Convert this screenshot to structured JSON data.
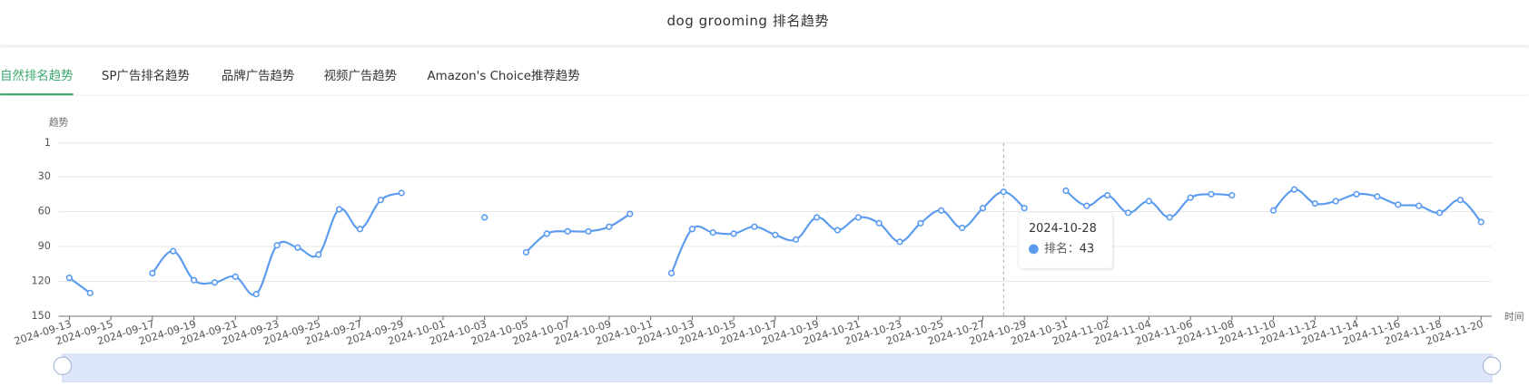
{
  "header": {
    "title": "dog grooming 排名趋势"
  },
  "tabs": {
    "items": [
      "自然排名趋势",
      "SP广告排名趋势",
      "品牌广告趋势",
      "视频广告趋势",
      "Amazon's Choice推荐趋势"
    ],
    "active": 0
  },
  "chart_data": {
    "type": "line",
    "ylabel": "趋势",
    "xlabel": "时间",
    "categories": [
      "2024-09-13",
      null,
      "2024-09-15",
      null,
      "2024-09-17",
      null,
      "2024-09-19",
      null,
      "2024-09-21",
      null,
      "2024-09-23",
      null,
      "2024-09-25",
      null,
      "2024-09-27",
      null,
      "2024-09-29",
      null,
      "2024-10-01",
      null,
      "2024-10-03",
      null,
      "2024-10-05",
      null,
      "2024-10-07",
      null,
      "2024-10-09",
      null,
      "2024-10-11",
      null,
      "2024-10-13",
      null,
      "2024-10-15",
      null,
      "2024-10-17",
      null,
      "2024-10-19",
      null,
      "2024-10-21",
      null,
      "2024-10-23",
      null,
      "2024-10-25",
      null,
      "2024-10-27",
      null,
      "2024-10-29",
      null,
      "2024-10-31",
      null,
      "2024-11-02",
      null,
      "2024-11-04",
      null,
      "2024-11-06",
      null,
      "2024-11-08",
      null,
      "2024-11-10",
      null,
      "2024-11-12",
      null,
      "2024-11-14",
      null,
      "2024-11-16",
      null,
      "2024-11-18",
      null,
      "2024-11-20"
    ],
    "series": [
      {
        "name": "排名",
        "color": "#5b9bef",
        "values": [
          117,
          130,
          null,
          null,
          113,
          94,
          119,
          121,
          116,
          131,
          89,
          91,
          97,
          58,
          75,
          50,
          44,
          null,
          null,
          null,
          65,
          null,
          95,
          79,
          77,
          77,
          73,
          62,
          null,
          113,
          75,
          78,
          79,
          73,
          80,
          84,
          65,
          76,
          65,
          70,
          86,
          70,
          59,
          74,
          57,
          43,
          57,
          null,
          42,
          55,
          46,
          61,
          51,
          65,
          48,
          45,
          46,
          null,
          59,
          41,
          53,
          51,
          45,
          47,
          54,
          55,
          61,
          50,
          69
        ]
      }
    ],
    "ylim": [
      1,
      150
    ],
    "inverse": true,
    "yticks": [
      1,
      30,
      60,
      90,
      120,
      150
    ],
    "grid": true,
    "tooltip": {
      "index": 45,
      "title": "2024-10-28",
      "label": "排名：",
      "value": 43
    }
  }
}
